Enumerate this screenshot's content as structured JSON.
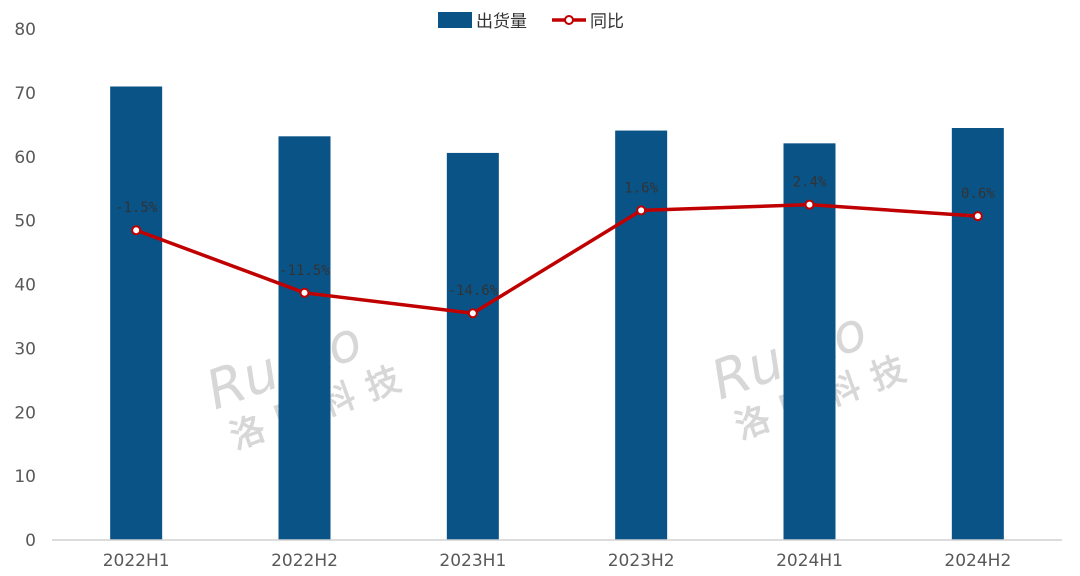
{
  "chart_data": {
    "type": "bar",
    "categories": [
      "2022H1",
      "2022H2",
      "2023H1",
      "2023H2",
      "2024H1",
      "2024H2"
    ],
    "series": [
      {
        "name": "出货量",
        "type": "bar",
        "values": [
          71,
          63.2,
          60.6,
          64.1,
          62.1,
          64.5
        ]
      },
      {
        "name": "同比",
        "type": "line",
        "values": [
          48.5,
          38.7,
          35.5,
          51.6,
          52.5,
          50.7
        ],
        "labels": [
          "-1.5%",
          "-11.5%",
          "-14.6%",
          "1.6%",
          "2.4%",
          "0.6%"
        ]
      }
    ],
    "ylim": [
      0,
      80
    ],
    "yticks": [
      0,
      10,
      20,
      30,
      40,
      50,
      60,
      70,
      80
    ],
    "legend_position": "top-center",
    "grid": false,
    "colors": {
      "bar": "#0a5386",
      "line": "#c00000"
    }
  },
  "watermark": {
    "logo": "Runto",
    "name": "洛图科技"
  }
}
